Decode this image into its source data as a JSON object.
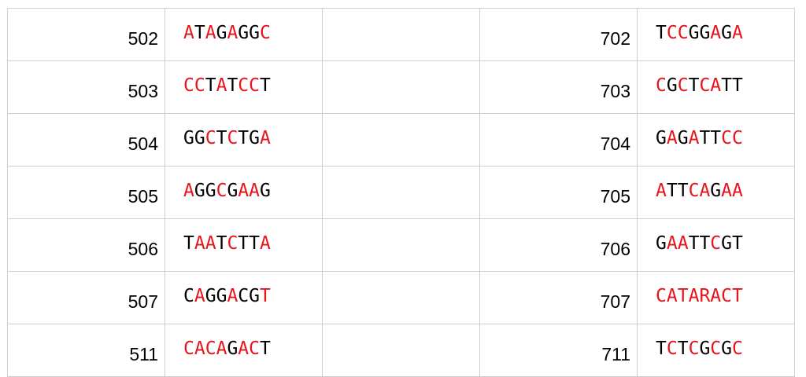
{
  "colors": {
    "black": "#000000",
    "red": "#e8141c"
  },
  "rows": [
    {
      "left": {
        "id": "502",
        "seq": "ATAGAGGC",
        "mask": "RBRBRBBR"
      },
      "right": {
        "id": "702",
        "seq": "TCCGGAGA",
        "mask": "BRRBBRBR"
      }
    },
    {
      "left": {
        "id": "503",
        "seq": "CCTATCCT",
        "mask": "RRBRBRRB"
      },
      "right": {
        "id": "703",
        "seq": "CGCTCATT",
        "mask": "RBRBRRBB"
      }
    },
    {
      "left": {
        "id": "504",
        "seq": "GGCTCTGA",
        "mask": "BBRBRBBR"
      },
      "right": {
        "id": "704",
        "seq": "GAGATTCC",
        "mask": "BRBRBBRR"
      }
    },
    {
      "left": {
        "id": "505",
        "seq": "AGGCGAAG",
        "mask": "RBBRBRRB"
      },
      "right": {
        "id": "705",
        "seq": "ATTCAGAA",
        "mask": "RBBRRBRR"
      }
    },
    {
      "left": {
        "id": "506",
        "seq": "TAATCTTA",
        "mask": "BRRBRBBR"
      },
      "right": {
        "id": "706",
        "seq": "GAATTCGT",
        "mask": "BRRBBRBB"
      }
    },
    {
      "left": {
        "id": "507",
        "seq": "CAGGACGT",
        "mask": "BRBBRBBR"
      },
      "right": {
        "id": "707",
        "seq": "CATARACT",
        "mask": "RRRRRRRR"
      }
    },
    {
      "left": {
        "id": "511",
        "seq": "CACAGACT",
        "mask": "RRRRBRRB"
      },
      "right": {
        "id": "711",
        "seq": "TCTCGCGC",
        "mask": "BRBRBRBR"
      }
    }
  ]
}
